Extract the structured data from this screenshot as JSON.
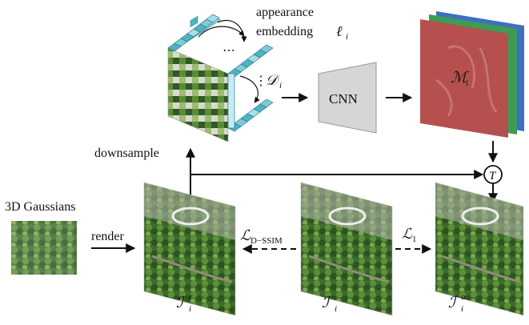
{
  "labels": {
    "appearance": "appearance",
    "embedding": "embedding",
    "ell_symbol": "ℓ",
    "ell_sub": "i",
    "d_symbol": "𝒟",
    "d_sub": "i",
    "dots": "⋯",
    "vdots": "⋮",
    "cnn": "CNN",
    "m_symbol": "ℳ",
    "m_sub": "i",
    "downsample": "downsample",
    "gaussians": "3D Gaussians",
    "render": "render",
    "t_symbol": "T",
    "ir_symbol": "ℐ",
    "ir_sub": "i",
    "ir_sup": "r",
    "i_symbol": "ℐ",
    "i_sub": "i",
    "ia_symbol": "ℐ",
    "ia_sub": "i",
    "ia_sup": "a",
    "l_dssim_symbol": "ℒ",
    "l_dssim_sub": "D−SSIM",
    "l1_symbol": "ℒ",
    "l1_sub": "1"
  },
  "colors": {
    "cube_teal": "#4fb3c3",
    "cube_teal_light": "#a9dde6",
    "map_red": "#b5504f",
    "map_green": "#3f9a55",
    "map_blue": "#3f6fc0",
    "cnn_gray": "#d6d6d6",
    "aerial_green": "#3e6b2c"
  }
}
